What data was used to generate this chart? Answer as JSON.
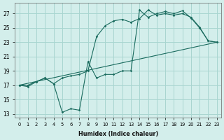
{
  "xlabel": "Humidex (Indice chaleur)",
  "background_color": "#d3eeeb",
  "grid_color": "#a8d5d0",
  "line_color": "#1a6b5e",
  "xlim": [
    -0.5,
    23.5
  ],
  "ylim": [
    12.5,
    28.5
  ],
  "xticks": [
    0,
    1,
    2,
    3,
    4,
    5,
    6,
    7,
    8,
    9,
    10,
    11,
    12,
    13,
    14,
    15,
    16,
    17,
    18,
    19,
    20,
    21,
    22,
    23
  ],
  "yticks": [
    13,
    15,
    17,
    19,
    21,
    23,
    25,
    27
  ],
  "line1_x": [
    0,
    1,
    2,
    3,
    4,
    5,
    6,
    7,
    8,
    9,
    10,
    11,
    12,
    13,
    14,
    15,
    16,
    17,
    18,
    19,
    20,
    21,
    22,
    23
  ],
  "line1_y": [
    17.0,
    16.8,
    17.5,
    18.0,
    17.2,
    13.2,
    13.7,
    13.5,
    20.3,
    18.0,
    18.5,
    18.5,
    19.0,
    19.0,
    27.5,
    26.5,
    27.0,
    27.3,
    27.0,
    27.4,
    26.4,
    25.0,
    23.2,
    23.0
  ],
  "line2_x": [
    0,
    1,
    2,
    3,
    4,
    5,
    6,
    7,
    8,
    9,
    10,
    11,
    12,
    13,
    14,
    15,
    16,
    17,
    18,
    19,
    20,
    21,
    22,
    23
  ],
  "line2_y": [
    17.0,
    17.0,
    17.5,
    18.0,
    17.2,
    18.0,
    18.3,
    18.5,
    19.0,
    23.8,
    25.3,
    26.0,
    26.2,
    25.8,
    26.3,
    27.5,
    26.8,
    27.0,
    26.8,
    27.0,
    26.5,
    25.1,
    23.2,
    23.0
  ],
  "line3_x": [
    0,
    23
  ],
  "line3_y": [
    17.0,
    23.0
  ]
}
